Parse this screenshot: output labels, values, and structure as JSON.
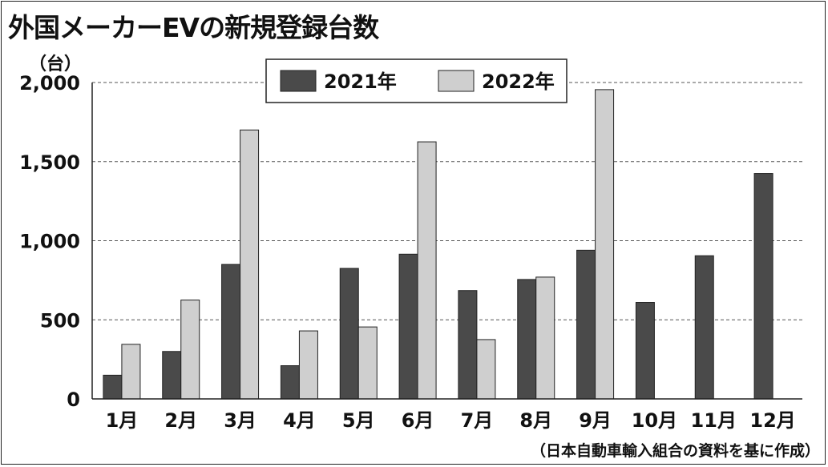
{
  "header": {
    "title": "外国メーカーEVの新規登録台数",
    "unit": "（台）"
  },
  "footer": {
    "source": "（日本自動車輸入組合の資料を基に作成）"
  },
  "colors": {
    "series_2021": "#4a4a4a",
    "series_2022": "#cfcfcf",
    "grid": "#555555",
    "axis": "#222222"
  },
  "chart_data": {
    "type": "bar",
    "title": "外国メーカーEVの新規登録台数",
    "xlabel": "",
    "ylabel": "（台）",
    "ylim": [
      0,
      2000
    ],
    "yticks": [
      0,
      500,
      1000,
      1500,
      2000
    ],
    "ytick_labels": [
      "0",
      "500",
      "1,000",
      "1,500",
      "2,000"
    ],
    "grid": "dashed horizontal",
    "legend_position": "top-center",
    "categories": [
      "1月",
      "2月",
      "3月",
      "4月",
      "5月",
      "6月",
      "7月",
      "8月",
      "9月",
      "10月",
      "11月",
      "12月"
    ],
    "series": [
      {
        "name": "2021年",
        "values": [
          150,
          300,
          850,
          210,
          825,
          915,
          685,
          755,
          940,
          610,
          905,
          1425
        ]
      },
      {
        "name": "2022年",
        "values": [
          345,
          625,
          1700,
          430,
          455,
          1625,
          375,
          770,
          1955,
          null,
          null,
          null
        ]
      }
    ]
  }
}
